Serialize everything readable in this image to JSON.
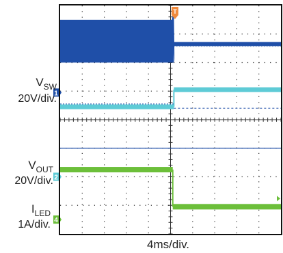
{
  "chart_data": {
    "type": "line",
    "xlabel": "4ms/div.",
    "grid": true,
    "x_divisions": 10,
    "y_divisions": 8,
    "trigger_marker": "T",
    "trigger_color": "#f08a3c",
    "channels": [
      {
        "id": "1",
        "name": "V",
        "sub": "SW",
        "scale": "20V/div.",
        "color": "#1f4fa8",
        "style": "switching-band",
        "segments": [
          {
            "x_start": 0.0,
            "x_end": 5.15,
            "band_top_div": 0.5,
            "band_bottom_div": 2.0
          },
          {
            "x_start": 5.15,
            "x_end": 10.0,
            "level_div": 1.35
          }
        ]
      },
      {
        "id": "2",
        "name": "V",
        "sub": "OUT",
        "scale": "20V/div.",
        "color": "#5ecbd6",
        "style": "step",
        "levels_div": [
          {
            "x_start": 0.0,
            "x_end": 5.15,
            "y_div": 3.55
          },
          {
            "x_start": 5.15,
            "x_end": 10.0,
            "y_div": 2.95
          }
        ]
      },
      {
        "id": "4",
        "name": "I",
        "sub": "LED",
        "scale": "1A/div.",
        "color": "#6cbf3a",
        "style": "step",
        "levels_div": [
          {
            "x_start": 0.0,
            "x_end": 5.1,
            "y_div": 5.75
          },
          {
            "x_start": 5.1,
            "x_end": 10.0,
            "y_div": 7.05
          }
        ]
      }
    ],
    "reference_line": {
      "color": "#1f4fa8",
      "y_div": 5.0
    }
  },
  "marker_labels": {
    "ch1": "1",
    "ch2": "2",
    "ch4": "4",
    "trigger": "T"
  }
}
